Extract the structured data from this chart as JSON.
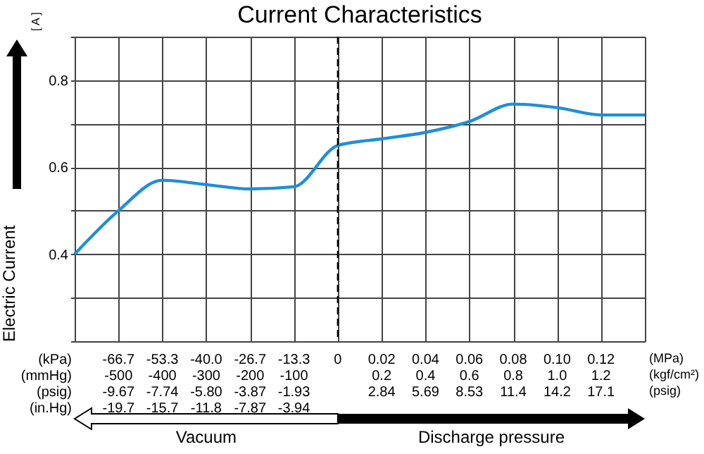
{
  "chart_data": {
    "type": "line",
    "title": "Current Characteristics",
    "ylabel": "Electric Current",
    "categories": [
      null,
      "-66.7\n-500\n-9.67\n-19.7",
      "-53.3\n-400\n-7.74\n-15.7",
      "-40.0\n-300\n-5.80\n-11.8",
      "-26.7\n-200\n-3.87\n-7.87",
      "-13.3\n-100\n-1.93\n-3.94",
      "0",
      "0.02\n0.2\n2.84",
      "0.04\n0.4\n5.69",
      "0.06\n0.6\n8.53",
      "0.08\n0.8\n11.4",
      "0.10\n1.0\n14.2",
      "0.12\n1.2\n17.1",
      null
    ],
    "series": [
      {
        "color": "#1f8fd6",
        "values": [
          0.4,
          0.5,
          0.57,
          0.56,
          0.55,
          0.555,
          0.65,
          0.665,
          0.68,
          0.705,
          0.745,
          0.737,
          0.72,
          0.72
        ]
      }
    ],
    "ylim": [
      0.2,
      0.9
    ],
    "yticks": [
      {
        "value": 0.2,
        "label": null
      },
      {
        "value": 0.3,
        "label": null
      },
      0.4,
      {
        "value": 0.5,
        "label": null
      },
      0.6,
      {
        "value": 0.7,
        "label": null
      },
      0.8,
      {
        "value": 0.9,
        "label": null
      }
    ],
    "grid": true,
    "marker": "none",
    "line_style": "solid",
    "ref_lines": [
      {
        "axis": "x",
        "value": "0",
        "color": "#000000",
        "line_style": "dashed"
      }
    ],
    "annotations": [
      "[ A ]",
      "(kPa)",
      "(mmHg)",
      "(psig)",
      "(in.Hg)",
      "(MPa)",
      "(kgf/cm²)",
      "(psig)",
      "Vacuum",
      "Discharge pressure"
    ]
  }
}
